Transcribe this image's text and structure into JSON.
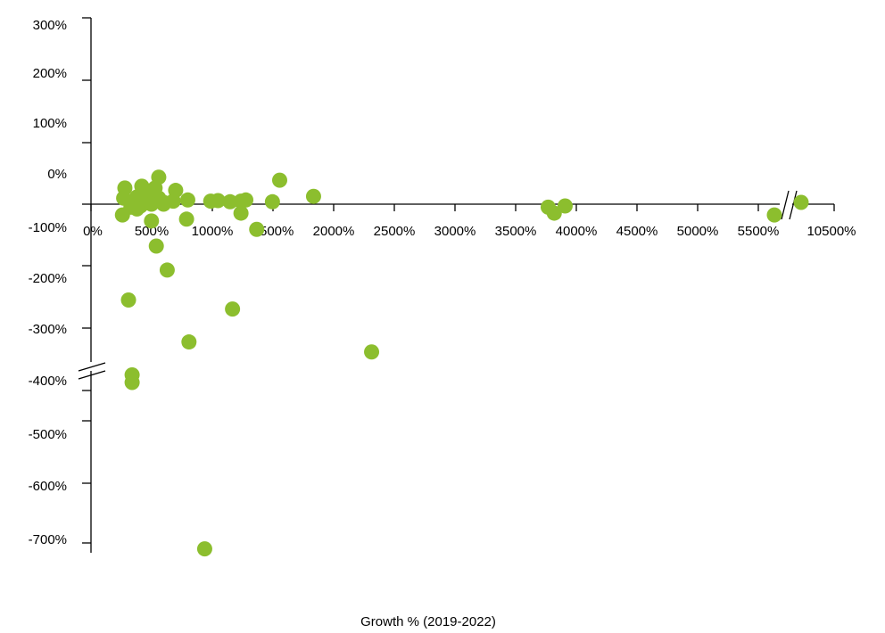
{
  "chart_data": {
    "type": "scatter",
    "title": "",
    "xlabel": "Growth % (2019-2022)",
    "ylabel": "",
    "x_tick_labels": [
      "0%",
      "500%",
      "1000%",
      "1500%",
      "2000%",
      "2500%",
      "3000%",
      "3500%",
      "4000%",
      "4500%",
      "5000%",
      "5500%",
      "10500%"
    ],
    "y_tick_labels": [
      "300%",
      "200%",
      "100%",
      "0%",
      "-100%",
      "-200%",
      "-300%",
      "-400%",
      "-500%",
      "-600%",
      "-700%"
    ],
    "x_axis_break": {
      "between": [
        5500,
        10500
      ]
    },
    "y_axis_break": {
      "between": [
        -300,
        -400
      ]
    },
    "grid": false,
    "marker_color": "#8CBE2E",
    "series": [
      {
        "points": [
          {
            "x": 560,
            "y": 45
          },
          {
            "x": 1560,
            "y": 40
          },
          {
            "x": 280,
            "y": 27
          },
          {
            "x": 420,
            "y": 30
          },
          {
            "x": 530,
            "y": 27
          },
          {
            "x": 700,
            "y": 23
          },
          {
            "x": 1840,
            "y": 13
          },
          {
            "x": 270,
            "y": 10
          },
          {
            "x": 380,
            "y": 12
          },
          {
            "x": 460,
            "y": 15
          },
          {
            "x": 560,
            "y": 10
          },
          {
            "x": 800,
            "y": 7
          },
          {
            "x": 1050,
            "y": 6
          },
          {
            "x": 1280,
            "y": 7
          },
          {
            "x": 990,
            "y": 5
          },
          {
            "x": 1150,
            "y": 4
          },
          {
            "x": 1240,
            "y": 5
          },
          {
            "x": 1500,
            "y": 4
          },
          {
            "x": 480,
            "y": 2
          },
          {
            "x": 600,
            "y": 3
          },
          {
            "x": 680,
            "y": 5
          },
          {
            "x": 330,
            "y": -5
          },
          {
            "x": 410,
            "y": -3
          },
          {
            "x": 500,
            "y": 0
          },
          {
            "x": 600,
            "y": 0
          },
          {
            "x": 380,
            "y": -8
          },
          {
            "x": 260,
            "y": -18
          },
          {
            "x": 1240,
            "y": -15
          },
          {
            "x": 500,
            "y": -28
          },
          {
            "x": 790,
            "y": -25
          },
          {
            "x": 1370,
            "y": -42
          },
          {
            "x": 540,
            "y": -70
          },
          {
            "x": 3780,
            "y": -5
          },
          {
            "x": 3920,
            "y": -3
          },
          {
            "x": 3830,
            "y": -15
          },
          {
            "x": 5650,
            "y": -18
          },
          {
            "x": 10500,
            "y": 3
          },
          {
            "x": 630,
            "y": -110
          },
          {
            "x": 310,
            "y": -160
          },
          {
            "x": 1170,
            "y": -175
          },
          {
            "x": 810,
            "y": -230
          },
          {
            "x": 340,
            "y": -285
          },
          {
            "x": 2320,
            "y": -345
          },
          {
            "x": 340,
            "y": -400
          },
          {
            "x": 940,
            "y": -700
          }
        ]
      }
    ]
  }
}
